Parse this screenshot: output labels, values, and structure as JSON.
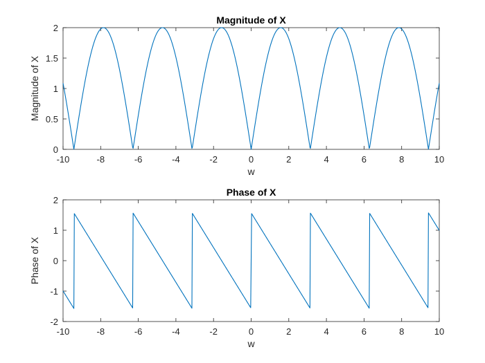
{
  "figure_background": "#ffffff",
  "chart_data": [
    {
      "type": "line",
      "title": "Magnitude of X",
      "xlabel": "w",
      "ylabel": "Magnitude of X",
      "xlim": [
        -10,
        10
      ],
      "ylim": [
        0,
        2
      ],
      "xticks": [
        -10,
        -8,
        -6,
        -4,
        -2,
        0,
        2,
        4,
        6,
        8,
        10
      ],
      "xtick_labels": [
        "-10",
        "-8",
        "-6",
        "-4",
        "-2",
        "0",
        "2",
        "4",
        "6",
        "8",
        "10"
      ],
      "yticks": [
        0,
        0.5,
        1,
        1.5,
        2
      ],
      "ytick_labels": [
        "0",
        "0.5",
        "1",
        "1.5",
        "2"
      ],
      "grid": false,
      "color": "#0072bd",
      "series": [
        {
          "function": "abs(2*sin(w))",
          "x_range": [
            -10,
            10
          ],
          "samples": 801
        }
      ]
    },
    {
      "type": "line",
      "title": "Phase of X",
      "xlabel": "w",
      "ylabel": "Phase of X",
      "xlim": [
        -10,
        10
      ],
      "ylim": [
        -2,
        2
      ],
      "xticks": [
        -10,
        -8,
        -6,
        -4,
        -2,
        0,
        2,
        4,
        6,
        8,
        10
      ],
      "xtick_labels": [
        "-10",
        "-8",
        "-6",
        "-4",
        "-2",
        "0",
        "2",
        "4",
        "6",
        "8",
        "10"
      ],
      "yticks": [
        -2,
        -1,
        0,
        1,
        2
      ],
      "ytick_labels": [
        "-2",
        "-1",
        "0",
        "1",
        "2"
      ],
      "grid": false,
      "color": "#0072bd",
      "series": [
        {
          "function": "angle(1 - exp(-2jw))",
          "x_range": [
            -10,
            10
          ],
          "samples": 801
        }
      ]
    }
  ]
}
